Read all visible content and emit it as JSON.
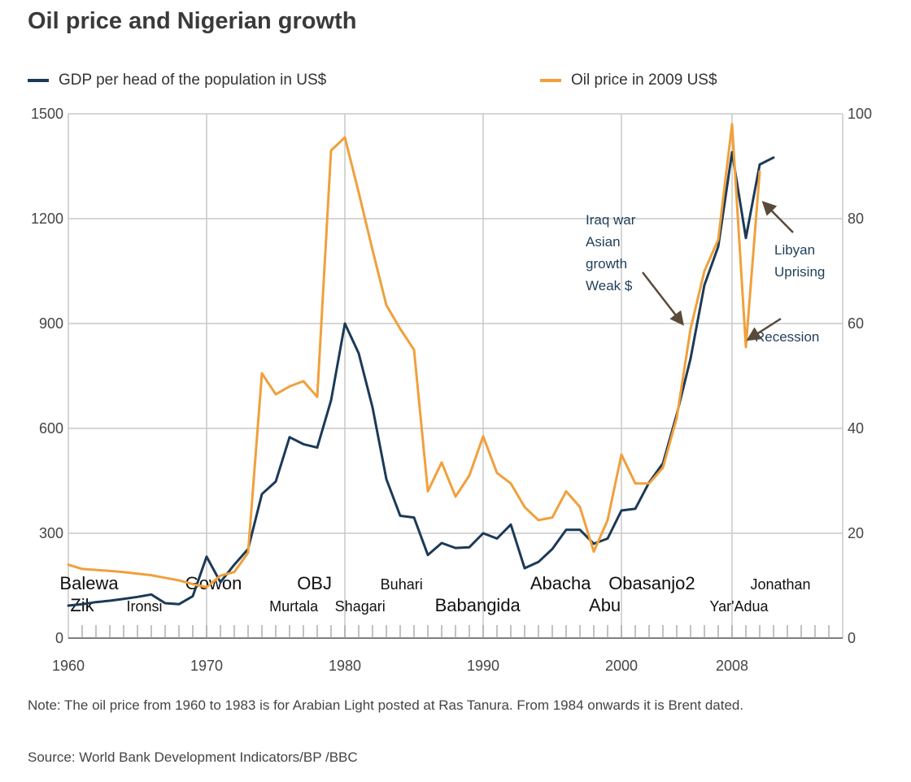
{
  "chart_data": {
    "type": "line",
    "title": "Oil price and Nigerian growth",
    "xlim": [
      1960,
      2016
    ],
    "y_left_lim": [
      0,
      1500
    ],
    "y_right_lim": [
      0,
      100
    ],
    "x_tick_labels": [
      {
        "year": 1960,
        "label": "1960"
      },
      {
        "year": 1970,
        "label": "1970"
      },
      {
        "year": 1980,
        "label": "1980"
      },
      {
        "year": 1990,
        "label": "1990"
      },
      {
        "year": 2000,
        "label": "2000"
      },
      {
        "year": 2008,
        "label": "2008"
      }
    ],
    "y_left_ticks": [
      {
        "value": 1500,
        "label": "1500"
      },
      {
        "value": 1200,
        "label": "1200"
      },
      {
        "value": 900,
        "label": "900"
      },
      {
        "value": 600,
        "label": "600"
      },
      {
        "value": 300,
        "label": "300"
      },
      {
        "value": 0,
        "label": "0"
      }
    ],
    "y_right_ticks": [
      {
        "value": 100,
        "label": "100"
      },
      {
        "value": 80,
        "label": "80"
      },
      {
        "value": 60,
        "label": "60"
      },
      {
        "value": 40,
        "label": "40"
      },
      {
        "value": 20,
        "label": "20"
      },
      {
        "value": 0,
        "label": "0"
      }
    ],
    "series": [
      {
        "name": "GDP per head of the population in US$",
        "axis": "left",
        "color": "#1b3a57",
        "x": [
          1960,
          1961,
          1962,
          1963,
          1964,
          1965,
          1966,
          1967,
          1968,
          1969,
          1970,
          1971,
          1972,
          1973,
          1974,
          1975,
          1976,
          1977,
          1978,
          1979,
          1980,
          1981,
          1982,
          1983,
          1984,
          1985,
          1986,
          1987,
          1988,
          1989,
          1990,
          1991,
          1992,
          1993,
          1994,
          1995,
          1996,
          1997,
          1998,
          1999,
          2000,
          2001,
          2002,
          2003,
          2004,
          2005,
          2006,
          2007,
          2008,
          2009,
          2010,
          2011
        ],
        "y": [
          93,
          97,
          103,
          107,
          112,
          118,
          125,
          100,
          97,
          120,
          233,
          160,
          210,
          255,
          412,
          448,
          575,
          555,
          545,
          680,
          900,
          815,
          660,
          455,
          350,
          345,
          238,
          272,
          258,
          260,
          300,
          285,
          325,
          200,
          218,
          255,
          310,
          310,
          270,
          285,
          365,
          370,
          445,
          500,
          640,
          800,
          1010,
          1120,
          1390,
          1145,
          1355,
          1375
        ]
      },
      {
        "name": "Oil price in 2009 US$",
        "axis": "right",
        "color": "#f0a03c",
        "x": [
          1960,
          1961,
          1962,
          1963,
          1964,
          1965,
          1966,
          1967,
          1968,
          1969,
          1970,
          1971,
          1972,
          1973,
          1974,
          1975,
          1976,
          1977,
          1978,
          1979,
          1980,
          1981,
          1982,
          1983,
          1984,
          1985,
          1986,
          1987,
          1988,
          1989,
          1990,
          1991,
          1992,
          1993,
          1994,
          1995,
          1996,
          1997,
          1998,
          1999,
          2000,
          2001,
          2002,
          2003,
          2004,
          2005,
          2006,
          2007,
          2008,
          2009,
          2010
        ],
        "y": [
          14,
          13.2,
          13,
          12.8,
          12.6,
          12.3,
          12,
          11.5,
          11,
          10.3,
          9.7,
          11.9,
          12.6,
          16.3,
          50.5,
          46.5,
          48,
          49,
          46,
          93,
          95.5,
          85,
          74,
          63.5,
          59,
          55,
          28,
          33.5,
          27,
          31,
          38.5,
          31.5,
          29.5,
          25,
          22.5,
          23,
          28,
          25,
          16.5,
          22.5,
          35,
          29.5,
          29.5,
          32.5,
          42,
          59,
          70,
          76,
          98,
          55.5,
          89
        ]
      }
    ],
    "leader_labels": [
      {
        "text": "Balewa",
        "year": 1961.5,
        "level": "upper"
      },
      {
        "text": "Zik",
        "year": 1961,
        "level": "lower"
      },
      {
        "text": "Ironsi",
        "year": 1965.5,
        "level": "lower"
      },
      {
        "text": "Gowon",
        "year": 1970.5,
        "level": "upper"
      },
      {
        "text": "OBJ",
        "year": 1977.8,
        "level": "upper"
      },
      {
        "text": "Murtala",
        "year": 1976.3,
        "level": "lower"
      },
      {
        "text": "Shagari",
        "year": 1981.1,
        "level": "lower"
      },
      {
        "text": "Buhari",
        "year": 1984.1,
        "level": "upper"
      },
      {
        "text": "Babangida",
        "year": 1989.6,
        "level": "lower"
      },
      {
        "text": "Abacha",
        "year": 1995.6,
        "level": "upper"
      },
      {
        "text": "Abu",
        "year": 1998.8,
        "level": "lower"
      },
      {
        "text": "Obasanjo2",
        "year": 2002.2,
        "level": "upper"
      },
      {
        "text": "Yar'Adua",
        "year": 2008.5,
        "level": "lower"
      },
      {
        "text": "Jonathan",
        "year": 2011.5,
        "level": "upper"
      }
    ],
    "annotations": [
      {
        "lines": [
          "Iraq war",
          "Asian",
          "growth",
          "Weak $"
        ],
        "target_year": 2004.4,
        "target_value": 60
      },
      {
        "lines": [
          "Libyan",
          "Uprising"
        ],
        "target_year": 2010.3,
        "target_value": 83
      },
      {
        "lines": [
          "Recession"
        ],
        "target_year": 2009.2,
        "target_value": 57
      }
    ]
  },
  "legend": {
    "gdp_label": "GDP per head of the population in US$",
    "oil_label": "Oil price in 2009 US$"
  },
  "note": "Note: The oil price from 1960 to 1983 is for Arabian Light posted at Ras Tanura. From 1984 onwards it is Brent dated.",
  "source": "Source: World Bank Development Indicators/BP /BBC",
  "colors": {
    "gdp": "#1b3a57",
    "oil": "#f0a03c",
    "grid": "#c8c8c8",
    "arrow": "#5a4a3a"
  }
}
